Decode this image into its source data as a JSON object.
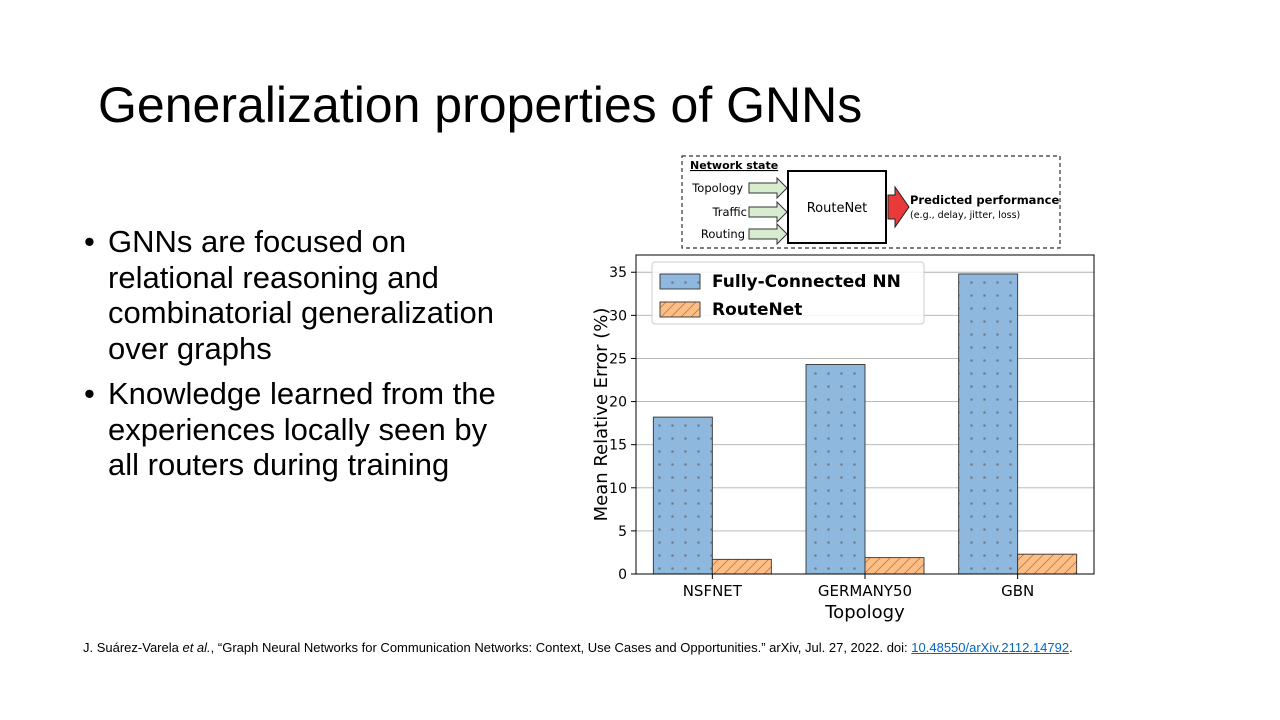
{
  "slide": {
    "title": "Generalization properties of GNNs",
    "bullets": [
      "GNNs are focused on relational reasoning and combinatorial generalization over graphs",
      "Knowledge learned from the experiences locally seen by all routers during training"
    ]
  },
  "diagram": {
    "heading": "Network state",
    "inputs": [
      "Topology",
      "Traffic",
      "Routing"
    ],
    "box_label": "RouteNet",
    "output_title": "Predicted performance",
    "output_sub": "(e.g., delay, jitter, loss)"
  },
  "chart_data": {
    "type": "bar",
    "categories": [
      "NSFNET",
      "GERMANY50",
      "GBN"
    ],
    "series": [
      {
        "name": "Fully-Connected NN",
        "values": [
          18.2,
          24.3,
          34.8
        ],
        "color": "#8fb8de",
        "pattern": "dots"
      },
      {
        "name": "RouteNet",
        "values": [
          1.7,
          1.9,
          2.3
        ],
        "color": "#ffbe86",
        "pattern": "hatch"
      }
    ],
    "xlabel": "Topology",
    "ylabel": "Mean Relative Error (%)",
    "ylim": [
      0,
      37
    ],
    "yticks": [
      0,
      5,
      10,
      15,
      20,
      25,
      30,
      35
    ],
    "grid": true,
    "legend": "top-left"
  },
  "reference": {
    "prefix": "J. Suárez-Varela ",
    "etal": "et al.",
    "middle": ", “Graph Neural Networks for Communication  Networks: Context, Use Cases and Opportunities.” arXiv, Jul. 27, 2022. doi: ",
    "doi_text": "10.48550/arXiv.2112.14792",
    "suffix": "."
  }
}
